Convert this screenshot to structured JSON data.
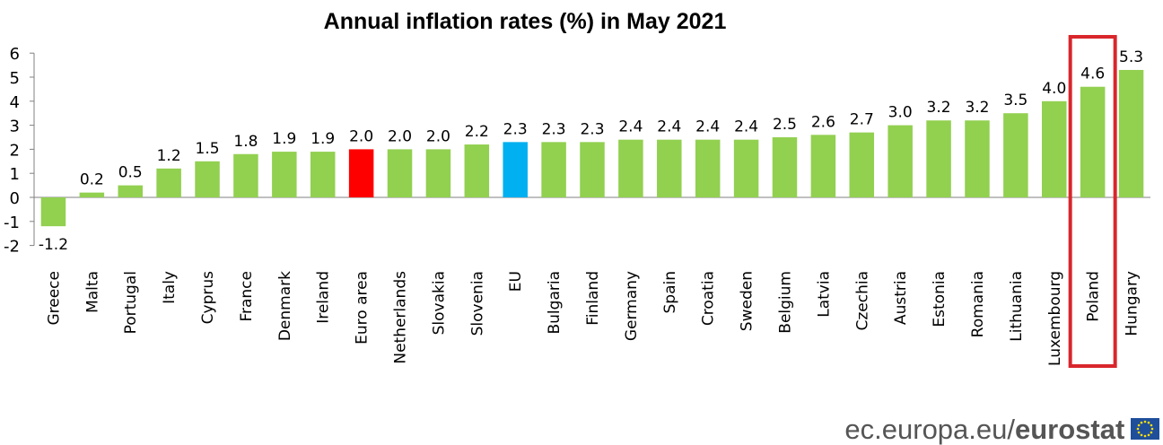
{
  "chart_data": {
    "type": "bar",
    "title": "Annual inflation rates (%) in May 2021",
    "xlabel": "",
    "ylabel": "",
    "ylim": [
      -2,
      6
    ],
    "yticks": [
      -2,
      -1,
      0,
      1,
      2,
      3,
      4,
      5,
      6
    ],
    "ytick_labels": [
      "-2",
      "-1",
      "0",
      "1",
      "2",
      "3",
      "4",
      "5",
      "6"
    ],
    "grid": false,
    "legend": "none",
    "categories": [
      "Greece",
      "Malta",
      "Portugal",
      "Italy",
      "Cyprus",
      "France",
      "Denmark",
      "Ireland",
      "Euro area",
      "Netherlands",
      "Slovakia",
      "Slovenia",
      "EU",
      "Bulgaria",
      "Finland",
      "Germany",
      "Spain",
      "Croatia",
      "Sweden",
      "Belgium",
      "Latvia",
      "Czechia",
      "Austria",
      "Estonia",
      "Romania",
      "Lithuania",
      "Luxembourg",
      "Poland",
      "Hungary"
    ],
    "values": [
      -1.2,
      0.2,
      0.5,
      1.2,
      1.5,
      1.8,
      1.9,
      1.9,
      2.0,
      2.0,
      2.0,
      2.2,
      2.3,
      2.3,
      2.3,
      2.4,
      2.4,
      2.4,
      2.4,
      2.5,
      2.6,
      2.7,
      3.0,
      3.2,
      3.2,
      3.5,
      4.0,
      4.6,
      5.3
    ],
    "value_labels": [
      "-1.2",
      "0.2",
      "0.5",
      "1.2",
      "1.5",
      "1.8",
      "1.9",
      "1.9",
      "2.0",
      "2.0",
      "2.0",
      "2.2",
      "2.3",
      "2.3",
      "2.3",
      "2.4",
      "2.4",
      "2.4",
      "2.4",
      "2.5",
      "2.6",
      "2.7",
      "3.0",
      "3.2",
      "3.2",
      "3.5",
      "4.0",
      "4.6",
      "5.3"
    ],
    "colors": {
      "default": "#92d050",
      "Euro area": "#ff0000",
      "EU": "#00b0f0",
      "highlight_box": "#d9262c"
    },
    "highlighted_category": "Poland"
  },
  "footer": {
    "url": "ec.europa.eu/",
    "brand": "eurostat",
    "logo_icon": "eu-flag-icon",
    "logo_colors": {
      "field": "#1f4e9b",
      "stars": "#ffdd00"
    }
  }
}
